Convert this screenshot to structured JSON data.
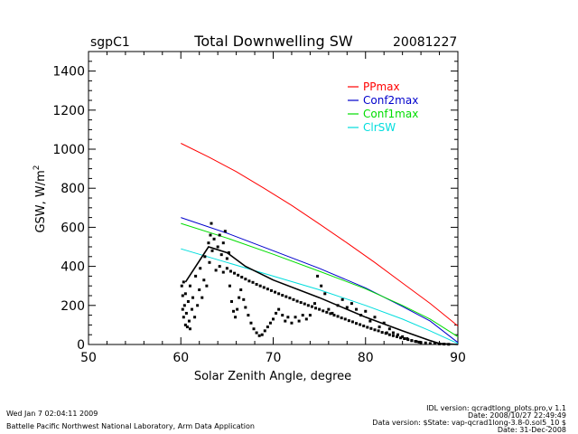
{
  "header": {
    "site": "sgpC1",
    "title": "Total Downwelling SW",
    "date": "20081227"
  },
  "footer": {
    "left_line1": "Wed Jan  7 02:04:11 2009",
    "left_line2": "Battelle Pacific Northwest National Laboratory, Arm Data Application",
    "right_line1": "IDL version: qcradtlong_plots.pro,v 1.1",
    "right_line2": "Date: 2008/10/27 22:49:49",
    "right_line3": "Data version: $State: vap-qcrad1long-3.8-0.sol5_10 $",
    "right_line4": "Date: 31-Dec-2008"
  },
  "colors": {
    "PPmax": "#ff0000",
    "Conf2max": "#0000cc",
    "Conf1max": "#00dd00",
    "ClrSW": "#00dddd",
    "fit": "#000000",
    "obs": "#000000"
  },
  "chart_data": {
    "type": "scatter",
    "title": "Total Downwelling SW",
    "xlabel": "Solar Zenith Angle, degree",
    "ylabel_main": "GSW,  W/m",
    "ylabel_sup": "2",
    "xlim": [
      50,
      90
    ],
    "ylim": [
      0,
      1500
    ],
    "xticks": [
      "50",
      "60",
      "70",
      "80",
      "90"
    ],
    "yticks": [
      "0",
      "200",
      "400",
      "600",
      "800",
      "1000",
      "1200",
      "1400"
    ],
    "legend_position": "top-right",
    "legend": [
      "PPmax",
      "Conf2max",
      "Conf1max",
      "ClrSW"
    ],
    "series": [
      {
        "name": "PPmax",
        "color": "#ff0000",
        "points": [
          [
            60,
            1030
          ],
          [
            63,
            960
          ],
          [
            66,
            885
          ],
          [
            69,
            800
          ],
          [
            72,
            712
          ],
          [
            75,
            617
          ],
          [
            78,
            520
          ],
          [
            81,
            420
          ],
          [
            84,
            315
          ],
          [
            87,
            210
          ],
          [
            90,
            95
          ]
        ]
      },
      {
        "name": "Conf2max",
        "color": "#0000cc",
        "points": [
          [
            60,
            650
          ],
          [
            65,
            570
          ],
          [
            70,
            480
          ],
          [
            75,
            390
          ],
          [
            80,
            290
          ],
          [
            84,
            195
          ],
          [
            87,
            120
          ],
          [
            90,
            10
          ]
        ]
      },
      {
        "name": "Conf1max",
        "color": "#00dd00",
        "points": [
          [
            60,
            620
          ],
          [
            65,
            545
          ],
          [
            70,
            462
          ],
          [
            75,
            375
          ],
          [
            80,
            285
          ],
          [
            84,
            200
          ],
          [
            87,
            130
          ],
          [
            90,
            40
          ]
        ]
      },
      {
        "name": "ClrSW",
        "color": "#00dddd",
        "points": [
          [
            60,
            490
          ],
          [
            65,
            420
          ],
          [
            70,
            350
          ],
          [
            75,
            280
          ],
          [
            80,
            200
          ],
          [
            84,
            130
          ],
          [
            87,
            70
          ],
          [
            90,
            5
          ]
        ]
      },
      {
        "name": "",
        "color": "#000000",
        "points": [
          [
            60.5,
            320
          ],
          [
            63,
            500
          ],
          [
            65,
            470
          ],
          [
            67,
            400
          ],
          [
            70,
            330
          ],
          [
            75,
            240
          ],
          [
            80,
            140
          ],
          [
            84,
            70
          ],
          [
            87,
            20
          ],
          [
            88,
            5
          ],
          [
            90,
            0
          ]
        ]
      }
    ],
    "observations": [
      [
        60.1,
        300
      ],
      [
        60.2,
        250
      ],
      [
        60.2,
        180
      ],
      [
        60.3,
        320
      ],
      [
        60.3,
        140
      ],
      [
        60.4,
        200
      ],
      [
        60.5,
        100
      ],
      [
        60.5,
        260
      ],
      [
        60.6,
        160
      ],
      [
        60.7,
        90
      ],
      [
        60.8,
        220
      ],
      [
        60.9,
        120
      ],
      [
        61.0,
        300
      ],
      [
        61.0,
        80
      ],
      [
        61.2,
        180
      ],
      [
        61.3,
        240
      ],
      [
        61.5,
        140
      ],
      [
        61.6,
        350
      ],
      [
        61.8,
        200
      ],
      [
        62.0,
        280
      ],
      [
        62.1,
        390
      ],
      [
        62.3,
        240
      ],
      [
        62.5,
        330
      ],
      [
        62.6,
        450
      ],
      [
        62.8,
        300
      ],
      [
        63.0,
        520
      ],
      [
        63.1,
        420
      ],
      [
        63.2,
        560
      ],
      [
        63.3,
        620
      ],
      [
        63.4,
        480
      ],
      [
        63.6,
        540
      ],
      [
        63.8,
        380
      ],
      [
        64.0,
        500
      ],
      [
        64.2,
        560
      ],
      [
        64.4,
        460
      ],
      [
        64.6,
        520
      ],
      [
        64.8,
        580
      ],
      [
        65.0,
        440
      ],
      [
        65.2,
        470
      ],
      [
        65.3,
        300
      ],
      [
        65.5,
        220
      ],
      [
        65.7,
        170
      ],
      [
        65.9,
        140
      ],
      [
        66.1,
        180
      ],
      [
        66.3,
        240
      ],
      [
        66.5,
        280
      ],
      [
        66.8,
        230
      ],
      [
        67.0,
        190
      ],
      [
        67.3,
        150
      ],
      [
        67.6,
        110
      ],
      [
        67.9,
        80
      ],
      [
        68.2,
        60
      ],
      [
        68.5,
        45
      ],
      [
        68.8,
        50
      ],
      [
        69.1,
        70
      ],
      [
        69.4,
        90
      ],
      [
        69.7,
        110
      ],
      [
        70.0,
        130
      ],
      [
        70.3,
        160
      ],
      [
        70.6,
        180
      ],
      [
        71.0,
        150
      ],
      [
        71.3,
        120
      ],
      [
        71.6,
        140
      ],
      [
        72.0,
        110
      ],
      [
        72.4,
        140
      ],
      [
        72.8,
        120
      ],
      [
        73.2,
        150
      ],
      [
        73.6,
        130
      ],
      [
        74.0,
        150
      ],
      [
        74.5,
        210
      ],
      [
        74.8,
        350
      ],
      [
        75.2,
        300
      ],
      [
        75.6,
        260
      ],
      [
        76.0,
        180
      ],
      [
        76.4,
        160
      ],
      [
        77.0,
        200
      ],
      [
        77.5,
        230
      ],
      [
        78.0,
        190
      ],
      [
        78.5,
        210
      ],
      [
        79.0,
        180
      ],
      [
        79.5,
        150
      ],
      [
        80.0,
        170
      ],
      [
        80.5,
        120
      ],
      [
        81.0,
        140
      ],
      [
        81.5,
        90
      ],
      [
        82.0,
        110
      ],
      [
        82.3,
        60
      ],
      [
        82.6,
        80
      ],
      [
        83.0,
        60
      ],
      [
        83.5,
        50
      ],
      [
        84.0,
        40
      ],
      [
        84.5,
        30
      ],
      [
        85.0,
        20
      ],
      [
        85.5,
        15
      ],
      [
        86.0,
        10
      ],
      [
        86.5,
        8
      ],
      [
        87.0,
        5
      ],
      [
        87.5,
        5
      ],
      [
        88.0,
        3
      ],
      [
        88.5,
        2
      ],
      [
        89.0,
        1
      ],
      [
        64.2,
        400
      ],
      [
        64.6,
        370
      ],
      [
        65.0,
        390
      ],
      [
        65.4,
        375
      ],
      [
        65.8,
        365
      ],
      [
        66.2,
        355
      ],
      [
        66.6,
        345
      ],
      [
        67.0,
        335
      ],
      [
        67.4,
        325
      ],
      [
        67.8,
        318
      ],
      [
        68.2,
        308
      ],
      [
        68.6,
        300
      ],
      [
        69.0,
        292
      ],
      [
        69.4,
        284
      ],
      [
        69.8,
        276
      ],
      [
        70.2,
        268
      ],
      [
        70.6,
        260
      ],
      [
        71.0,
        252
      ],
      [
        71.4,
        245
      ],
      [
        71.8,
        238
      ],
      [
        72.2,
        230
      ],
      [
        72.6,
        222
      ],
      [
        73.0,
        215
      ],
      [
        73.4,
        208
      ],
      [
        73.8,
        200
      ],
      [
        74.2,
        194
      ],
      [
        74.6,
        186
      ],
      [
        75.0,
        180
      ],
      [
        75.4,
        172
      ],
      [
        75.8,
        165
      ],
      [
        76.2,
        158
      ],
      [
        76.6,
        150
      ],
      [
        77.0,
        144
      ],
      [
        77.4,
        136
      ],
      [
        77.8,
        130
      ],
      [
        78.2,
        122
      ],
      [
        78.6,
        116
      ],
      [
        79.0,
        108
      ],
      [
        79.4,
        102
      ],
      [
        79.8,
        95
      ],
      [
        80.2,
        88
      ],
      [
        80.6,
        82
      ],
      [
        81.0,
        75
      ],
      [
        81.4,
        70
      ],
      [
        81.8,
        62
      ],
      [
        82.2,
        57
      ],
      [
        82.6,
        50
      ],
      [
        83.0,
        45
      ],
      [
        83.4,
        40
      ],
      [
        83.8,
        34
      ],
      [
        84.2,
        30
      ],
      [
        84.6,
        25
      ],
      [
        85.0,
        20
      ],
      [
        85.4,
        16
      ],
      [
        85.8,
        12
      ]
    ]
  }
}
